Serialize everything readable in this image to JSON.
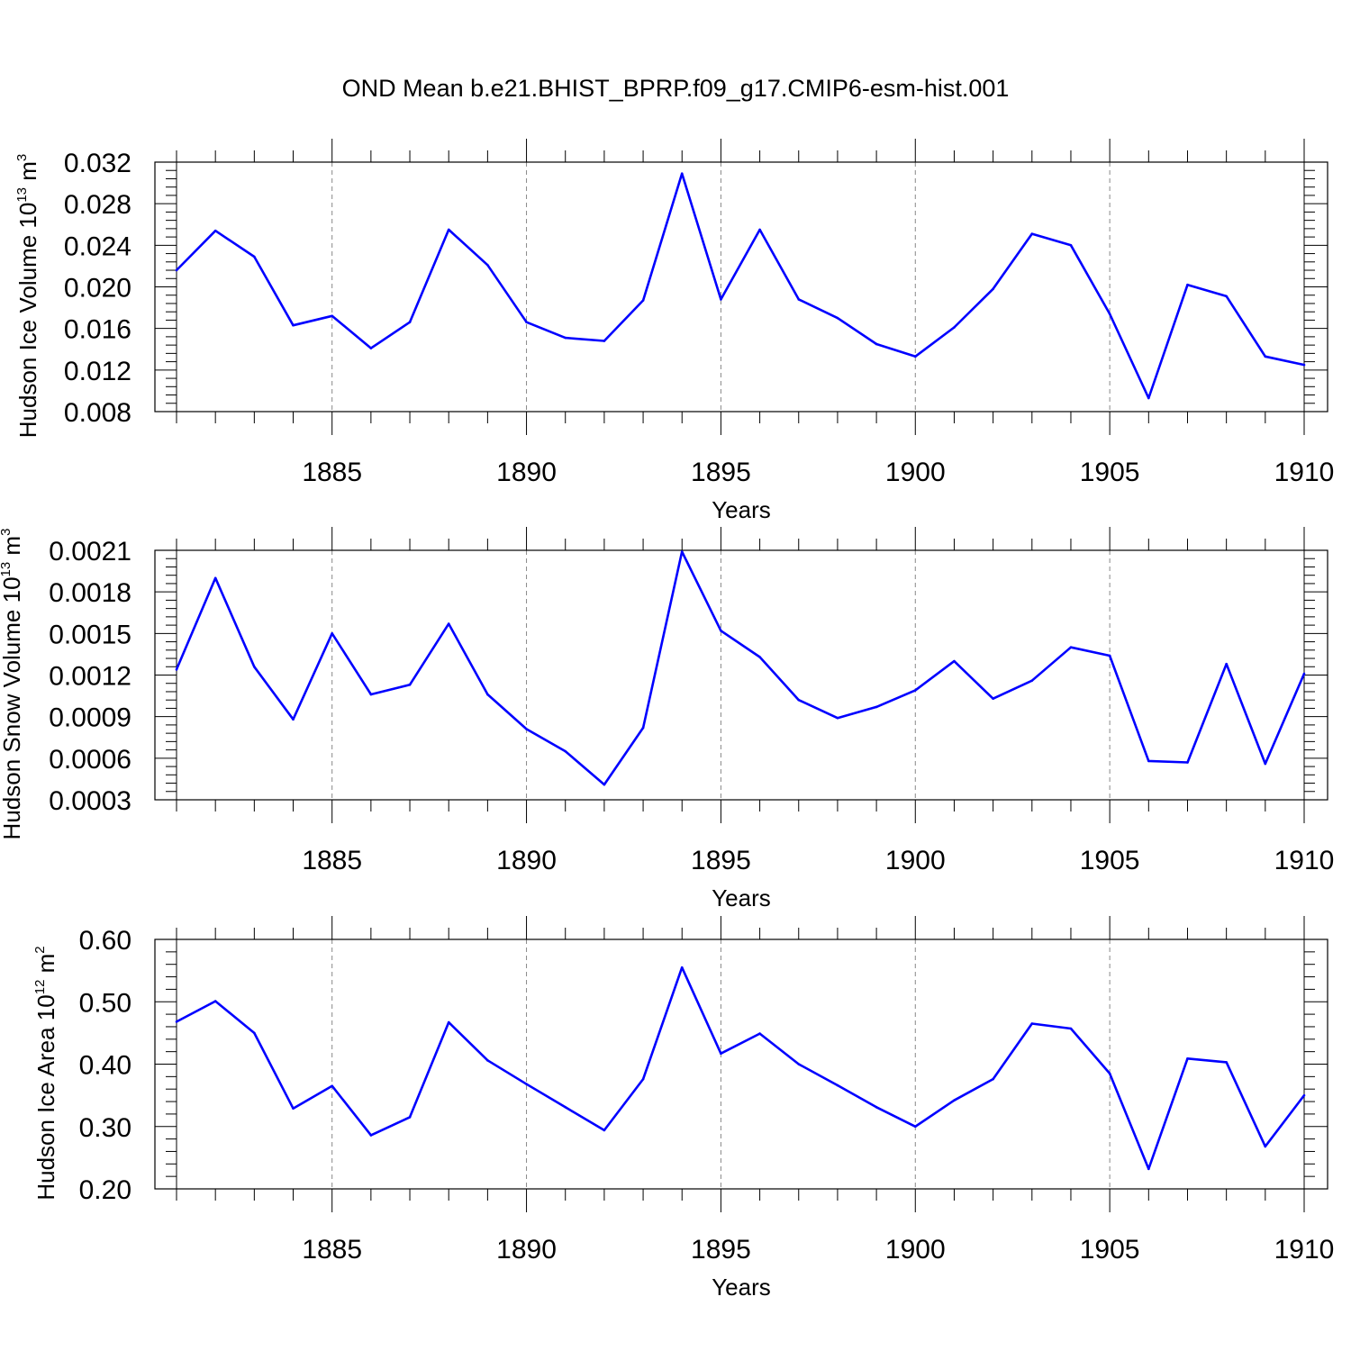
{
  "figure": {
    "title": "OND Mean b.e21.BHIST_BPRP.f09_g17.CMIP6-esm-hist.001",
    "line_color": "#0000ff"
  },
  "chart_data": [
    {
      "type": "line",
      "title": "",
      "xlabel": "Years",
      "ylabel": {
        "text": "Hudson Ice Volume 10",
        "sup_exp": "13",
        "unit": " m",
        "sup_unit": "3"
      },
      "x": [
        1881,
        1882,
        1883,
        1884,
        1885,
        1886,
        1887,
        1888,
        1889,
        1890,
        1891,
        1892,
        1893,
        1894,
        1895,
        1896,
        1897,
        1898,
        1899,
        1900,
        1901,
        1902,
        1903,
        1904,
        1905,
        1906,
        1907,
        1908,
        1909,
        1910
      ],
      "values": [
        0.0216,
        0.0254,
        0.0229,
        0.0163,
        0.0172,
        0.0141,
        0.0166,
        0.0255,
        0.0221,
        0.0166,
        0.0151,
        0.0148,
        0.0187,
        0.0309,
        0.0188,
        0.0255,
        0.0188,
        0.017,
        0.0145,
        0.0133,
        0.0161,
        0.0198,
        0.0251,
        0.024,
        0.0174,
        0.0093,
        0.0202,
        0.0191,
        0.0133,
        0.0125
      ],
      "xlim": [
        1881,
        1910
      ],
      "ylim": [
        0.008,
        0.032
      ],
      "yticks": [
        "0.008",
        "0.012",
        "0.016",
        "0.020",
        "0.024",
        "0.028",
        "0.032"
      ],
      "xticks": [
        "1885",
        "1890",
        "1895",
        "1900",
        "1905",
        "1910"
      ],
      "grid": "dashed vertical at major x ticks"
    },
    {
      "type": "line",
      "title": "",
      "xlabel": "Years",
      "ylabel": {
        "text": "Hudson Snow Volume 10",
        "sup_exp": "13",
        "unit": " m",
        "sup_unit": "3"
      },
      "x": [
        1881,
        1882,
        1883,
        1884,
        1885,
        1886,
        1887,
        1888,
        1889,
        1890,
        1891,
        1892,
        1893,
        1894,
        1895,
        1896,
        1897,
        1898,
        1899,
        1900,
        1901,
        1902,
        1903,
        1904,
        1905,
        1906,
        1907,
        1908,
        1909,
        1910
      ],
      "values": [
        0.00124,
        0.0019,
        0.00126,
        0.00088,
        0.0015,
        0.00106,
        0.00113,
        0.00157,
        0.00106,
        0.00081,
        0.00065,
        0.00041,
        0.00082,
        0.00209,
        0.00152,
        0.00133,
        0.00102,
        0.00089,
        0.00097,
        0.00109,
        0.0013,
        0.00103,
        0.00116,
        0.0014,
        0.00134,
        0.00058,
        0.00057,
        0.00128,
        0.00056,
        0.00121
      ],
      "xlim": [
        1881,
        1910
      ],
      "ylim": [
        0.0003,
        0.0021
      ],
      "yticks": [
        "0.0003",
        "0.0006",
        "0.0009",
        "0.0012",
        "0.0015",
        "0.0018",
        "0.0021"
      ],
      "xticks": [
        "1885",
        "1890",
        "1895",
        "1900",
        "1905",
        "1910"
      ],
      "grid": "dashed vertical at major x ticks"
    },
    {
      "type": "line",
      "title": "",
      "xlabel": "Years",
      "ylabel": {
        "text": "Hudson Ice Area 10",
        "sup_exp": "12",
        "unit": " m",
        "sup_unit": "2"
      },
      "x": [
        1881,
        1882,
        1883,
        1884,
        1885,
        1886,
        1887,
        1888,
        1889,
        1890,
        1891,
        1892,
        1893,
        1894,
        1895,
        1896,
        1897,
        1898,
        1899,
        1900,
        1901,
        1902,
        1903,
        1904,
        1905,
        1906,
        1907,
        1908,
        1909,
        1910
      ],
      "values": [
        0.468,
        0.501,
        0.45,
        0.329,
        0.365,
        0.286,
        0.315,
        0.467,
        0.406,
        0.368,
        0.331,
        0.294,
        0.376,
        0.555,
        0.417,
        0.449,
        0.4,
        0.366,
        0.331,
        0.3,
        0.342,
        0.376,
        0.465,
        0.457,
        0.385,
        0.232,
        0.409,
        0.403,
        0.268,
        0.35
      ],
      "xlim": [
        1881,
        1910
      ],
      "ylim": [
        0.2,
        0.6
      ],
      "yticks": [
        "0.20",
        "0.30",
        "0.40",
        "0.50",
        "0.60"
      ],
      "xticks": [
        "1885",
        "1890",
        "1895",
        "1900",
        "1905",
        "1910"
      ],
      "grid": "dashed vertical at major x ticks"
    }
  ]
}
